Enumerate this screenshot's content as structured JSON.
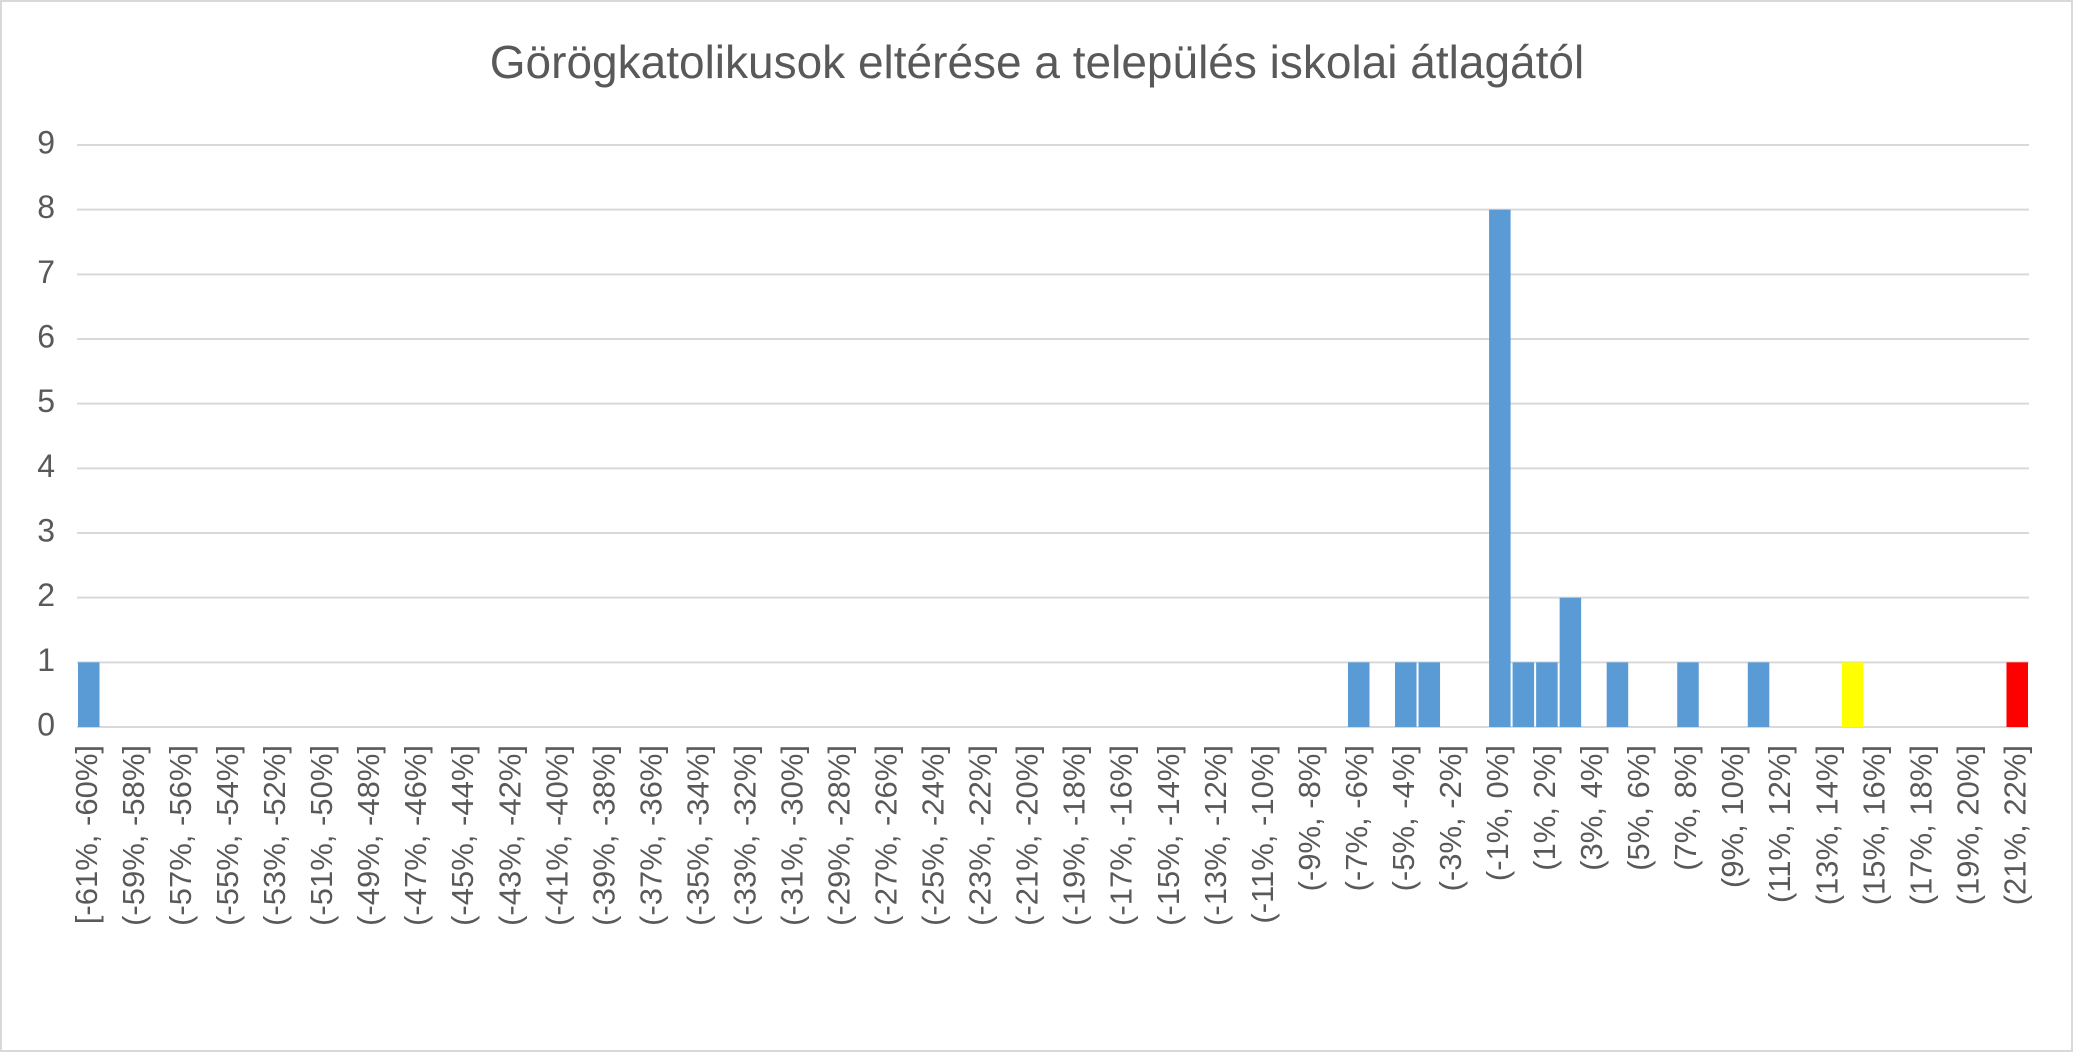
{
  "chart_data": {
    "type": "bar",
    "title": "Görögkatolikusok eltérése a település iskolai átlagától",
    "categories": [
      "[-61%, -60%]",
      null,
      "(-59%, -58%]",
      null,
      "(-57%, -56%]",
      null,
      "(-55%, -54%]",
      null,
      "(-53%, -52%]",
      null,
      "(-51%, -50%]",
      null,
      "(-49%, -48%]",
      null,
      "(-47%, -46%]",
      null,
      "(-45%, -44%]",
      null,
      "(-43%, -42%]",
      null,
      "(-41%, -40%]",
      null,
      "(-39%, -38%]",
      null,
      "(-37%, -36%]",
      null,
      "(-35%, -34%]",
      null,
      "(-33%, -32%]",
      null,
      "(-31%, -30%]",
      null,
      "(-29%, -28%]",
      null,
      "(-27%, -26%]",
      null,
      "(-25%, -24%]",
      null,
      "(-23%, -22%]",
      null,
      "(-21%, -20%]",
      null,
      "(-19%, -18%]",
      null,
      "(-17%, -16%]",
      null,
      "(-15%, -14%]",
      null,
      "(-13%, -12%]",
      null,
      "(-11%, -10%]",
      null,
      "(-9%, -8%]",
      null,
      "(-7%, -6%]",
      null,
      "(-5%, -4%]",
      null,
      "(-3%, -2%]",
      null,
      "(-1%, 0%]",
      null,
      "(1%, 2%]",
      null,
      "(3%, 4%]",
      null,
      "(5%, 6%]",
      null,
      "(7%, 8%]",
      null,
      "(9%, 10%]",
      null,
      "(11%, 12%]",
      null,
      "(13%, 14%]",
      null,
      "(15%, 16%]",
      null,
      "(17%, 18%]",
      null,
      "(19%, 20%]",
      null,
      "(21%, 22%]"
    ],
    "values": [
      1,
      0,
      0,
      0,
      0,
      0,
      0,
      0,
      0,
      0,
      0,
      0,
      0,
      0,
      0,
      0,
      0,
      0,
      0,
      0,
      0,
      0,
      0,
      0,
      0,
      0,
      0,
      0,
      0,
      0,
      0,
      0,
      0,
      0,
      0,
      0,
      0,
      0,
      0,
      0,
      0,
      0,
      0,
      0,
      0,
      0,
      0,
      0,
      0,
      0,
      0,
      0,
      0,
      0,
      1,
      0,
      1,
      1,
      0,
      0,
      8,
      1,
      1,
      2,
      0,
      1,
      0,
      0,
      1,
      0,
      0,
      1,
      0,
      0,
      0,
      1,
      0,
      0,
      0,
      0,
      0,
      0,
      1
    ],
    "colors": [
      "#5b9bd5",
      "#5b9bd5",
      "#5b9bd5",
      "#5b9bd5",
      "#5b9bd5",
      "#5b9bd5",
      "#5b9bd5",
      "#5b9bd5",
      "#5b9bd5",
      "#5b9bd5",
      "#5b9bd5",
      "#5b9bd5",
      "#5b9bd5",
      "#5b9bd5",
      "#5b9bd5",
      "#5b9bd5",
      "#5b9bd5",
      "#5b9bd5",
      "#5b9bd5",
      "#5b9bd5",
      "#5b9bd5",
      "#5b9bd5",
      "#5b9bd5",
      "#5b9bd5",
      "#5b9bd5",
      "#5b9bd5",
      "#5b9bd5",
      "#5b9bd5",
      "#5b9bd5",
      "#5b9bd5",
      "#5b9bd5",
      "#5b9bd5",
      "#5b9bd5",
      "#5b9bd5",
      "#5b9bd5",
      "#5b9bd5",
      "#5b9bd5",
      "#5b9bd5",
      "#5b9bd5",
      "#5b9bd5",
      "#5b9bd5",
      "#5b9bd5",
      "#5b9bd5",
      "#5b9bd5",
      "#5b9bd5",
      "#5b9bd5",
      "#5b9bd5",
      "#5b9bd5",
      "#5b9bd5",
      "#5b9bd5",
      "#5b9bd5",
      "#5b9bd5",
      "#5b9bd5",
      "#5b9bd5",
      "#5b9bd5",
      "#5b9bd5",
      "#5b9bd5",
      "#5b9bd5",
      "#5b9bd5",
      "#5b9bd5",
      "#5b9bd5",
      "#5b9bd5",
      "#5b9bd5",
      "#5b9bd5",
      "#5b9bd5",
      "#5b9bd5",
      "#5b9bd5",
      "#5b9bd5",
      "#5b9bd5",
      "#5b9bd5",
      "#5b9bd5",
      "#5b9bd5",
      "#5b9bd5",
      "#5b9bd5",
      "#5b9bd5",
      "#ffff00",
      "#5b9bd5",
      "#5b9bd5",
      "#5b9bd5",
      "#5b9bd5",
      "#5b9bd5",
      "#5b9bd5",
      "#ff0000"
    ],
    "ylim": [
      0,
      9
    ],
    "yticks": [
      0,
      1,
      2,
      3,
      4,
      5,
      6,
      7,
      8,
      9
    ],
    "grid": true
  }
}
